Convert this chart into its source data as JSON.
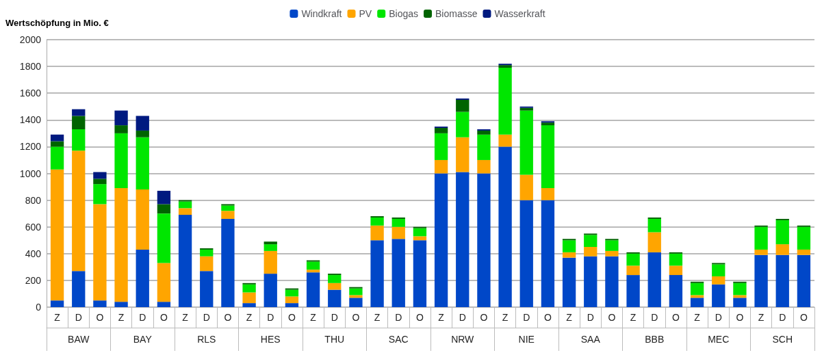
{
  "chart_data": {
    "type": "bar",
    "stacked": true,
    "ylabel": "Wertschöpfung in Mio. €",
    "categories": [
      "Z",
      "D",
      "O",
      "Z",
      "D",
      "O",
      "Z",
      "D",
      "O",
      "Z",
      "D",
      "O",
      "Z",
      "D",
      "O",
      "Z",
      "D",
      "O",
      "Z",
      "D",
      "O",
      "Z",
      "D",
      "O",
      "Z",
      "D",
      "O",
      "Z",
      "D",
      "O",
      "Z",
      "D",
      "O",
      "Z",
      "D",
      "O"
    ],
    "annotations": [
      "BAW",
      "BAY",
      "RLS",
      "HES",
      "THU",
      "SAC",
      "NRW",
      "NIE",
      "SAA",
      "BBB",
      "MEC",
      "SCH"
    ],
    "series": [
      {
        "name": "Windkraft",
        "color": "#0047c8",
        "values": [
          50,
          270,
          50,
          40,
          430,
          40,
          690,
          270,
          660,
          30,
          250,
          30,
          260,
          130,
          70,
          500,
          510,
          500,
          1000,
          1010,
          1000,
          1200,
          800,
          800,
          370,
          380,
          380,
          240,
          410,
          240,
          70,
          170,
          70,
          390,
          390,
          390
        ]
      },
      {
        "name": "PV",
        "color": "#ffa500",
        "values": [
          980,
          900,
          720,
          850,
          450,
          290,
          50,
          110,
          60,
          80,
          170,
          50,
          20,
          50,
          20,
          110,
          90,
          30,
          100,
          260,
          100,
          90,
          190,
          90,
          40,
          70,
          40,
          70,
          150,
          70,
          20,
          60,
          20,
          40,
          80,
          40
        ]
      },
      {
        "name": "Biogas",
        "color": "#00e600",
        "values": [
          170,
          160,
          150,
          410,
          390,
          370,
          50,
          50,
          40,
          60,
          50,
          50,
          60,
          60,
          50,
          60,
          60,
          60,
          200,
          190,
          190,
          500,
          480,
          470,
          90,
          90,
          80,
          90,
          100,
          90,
          90,
          90,
          90,
          170,
          180,
          170
        ]
      },
      {
        "name": "Biomasse",
        "color": "#006400",
        "values": [
          40,
          100,
          40,
          60,
          50,
          70,
          10,
          10,
          10,
          10,
          20,
          10,
          10,
          10,
          10,
          10,
          10,
          10,
          40,
          90,
          30,
          20,
          20,
          20,
          10,
          10,
          10,
          10,
          10,
          10,
          10,
          10,
          10,
          10,
          10,
          10
        ]
      },
      {
        "name": "Wasserkraft",
        "color": "#001a80",
        "values": [
          50,
          50,
          50,
          110,
          110,
          100,
          0,
          0,
          0,
          0,
          0,
          0,
          0,
          0,
          0,
          0,
          0,
          0,
          10,
          10,
          10,
          10,
          10,
          10,
          0,
          0,
          0,
          0,
          0,
          0,
          0,
          0,
          0,
          0,
          0,
          0
        ]
      }
    ],
    "ylim": [
      0,
      2000
    ],
    "yticks": [
      0,
      200,
      400,
      600,
      800,
      1000,
      1200,
      1400,
      1600,
      1800,
      2000
    ],
    "grid": "y",
    "legend": "top"
  }
}
